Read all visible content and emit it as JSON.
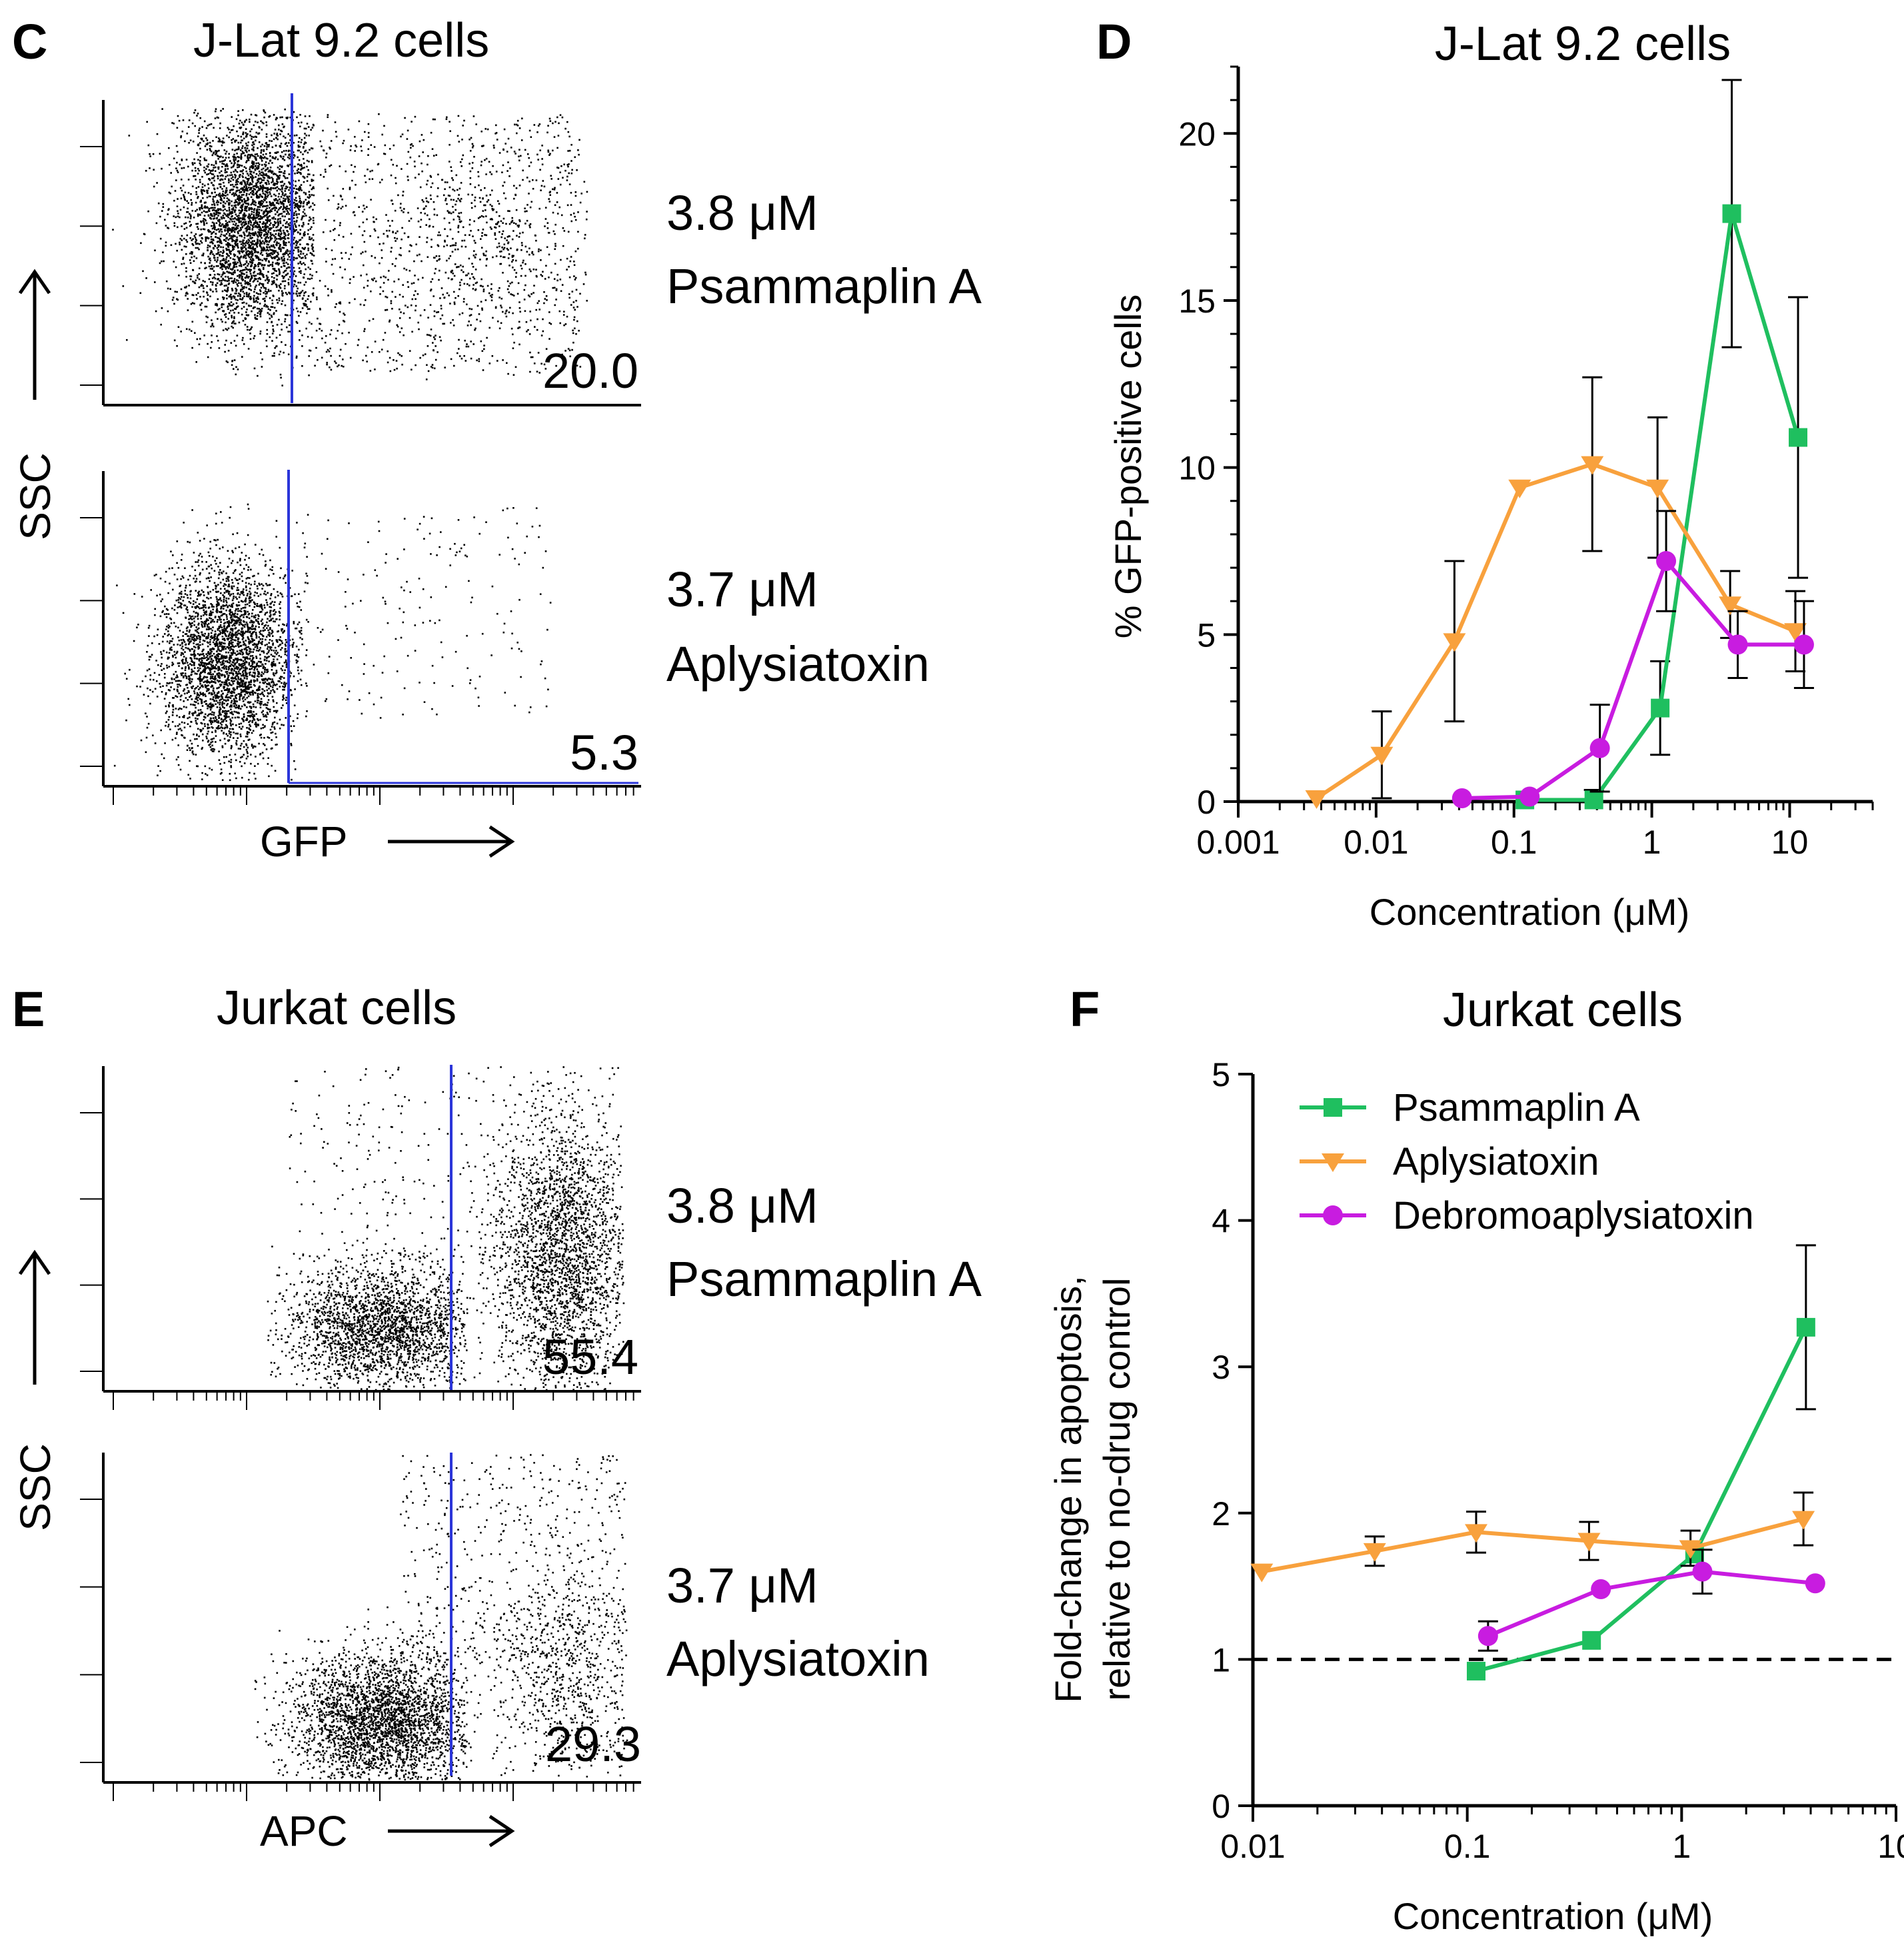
{
  "colors": {
    "psammaplin": "#1fbf5f",
    "aplysiatoxin": "#f8a13d",
    "debromo": "#c81ce0",
    "gate": "#2b35d9",
    "axis": "#000000",
    "dots": "#000000"
  },
  "panels": {
    "C": {
      "letter": "C",
      "title": "J-Lat 9.2 cells",
      "y_axis": "SSC",
      "x_axis": "GFP",
      "plots": [
        {
          "conc": "3.8 μM",
          "compound": "Psammaplin A",
          "gate_percent": "20.0"
        },
        {
          "conc": "3.7 μM",
          "compound": "Aplysiatoxin",
          "gate_percent": "5.3"
        }
      ]
    },
    "E": {
      "letter": "E",
      "title": "Jurkat cells",
      "y_axis": "SSC",
      "x_axis": "APC",
      "plots": [
        {
          "conc": "3.8 μM",
          "compound": "Psammaplin A",
          "gate_percent": "55.4"
        },
        {
          "conc": "3.7 μM",
          "compound": "Aplysiatoxin",
          "gate_percent": "29.3"
        }
      ]
    }
  },
  "chart_data": [
    {
      "panel": "D",
      "letter": "D",
      "type": "line",
      "title": "J-Lat 9.2 cells",
      "xlabel": "Concentration (μM)",
      "ylabel": "%  GFP-positive cells",
      "x_scale": "log",
      "xlim": [
        0.001,
        40
      ],
      "ylim": [
        0,
        22
      ],
      "x_ticks": [
        0.001,
        0.01,
        0.1,
        1,
        10
      ],
      "x_tick_labels": [
        "0.001",
        "0.01",
        "0.1",
        "1",
        "10"
      ],
      "y_ticks": [
        0,
        5,
        10,
        15,
        20
      ],
      "y_tick_labels": [
        "0",
        "5",
        "10",
        "15",
        "20"
      ],
      "series": [
        {
          "name": "Psammaplin A",
          "color": "#1fbf5f",
          "marker": "square",
          "x": [
            0.12,
            0.38,
            1.15,
            3.8,
            11.5
          ],
          "y": [
            0.05,
            0.05,
            2.8,
            17.6,
            10.9
          ],
          "err": [
            0,
            0.3,
            1.4,
            4.0,
            4.2
          ]
        },
        {
          "name": "Aplysiatoxin",
          "color": "#f8a13d",
          "marker": "triangle-down",
          "x": [
            0.0037,
            0.011,
            0.037,
            0.11,
            0.37,
            1.1,
            3.7,
            11.0
          ],
          "y": [
            0.1,
            1.4,
            4.8,
            9.4,
            10.1,
            9.4,
            5.9,
            5.1
          ],
          "err": [
            0,
            1.3,
            2.4,
            0,
            2.6,
            2.1,
            1.0,
            1.2
          ]
        },
        {
          "name": "Debromoaplysiatoxin",
          "color": "#c81ce0",
          "marker": "circle",
          "x": [
            0.042,
            0.13,
            0.42,
            1.27,
            4.2,
            12.7
          ],
          "y": [
            0.1,
            0.15,
            1.6,
            7.2,
            4.7,
            4.7
          ],
          "err": [
            0,
            0,
            1.3,
            1.5,
            1.0,
            1.3
          ]
        }
      ]
    },
    {
      "panel": "F",
      "letter": "F",
      "type": "line",
      "title": "Jurkat cells",
      "xlabel": "Concentration (μM)",
      "ylabel_lines": [
        "Fold-change in apoptosis,",
        "relative to no-drug control"
      ],
      "x_scale": "log",
      "xlim": [
        0.01,
        10
      ],
      "ylim": [
        0,
        5
      ],
      "x_ticks": [
        0.01,
        0.1,
        1,
        10
      ],
      "x_tick_labels": [
        "0.01",
        "0.1",
        "1",
        "10"
      ],
      "y_ticks": [
        0,
        1,
        2,
        3,
        4,
        5
      ],
      "y_tick_labels": [
        "0",
        "1",
        "2",
        "3",
        "4",
        "5"
      ],
      "reference_line": 1,
      "legend": [
        "Psammaplin A",
        "Aplysiatoxin",
        "Debromoaplysiatoxin"
      ],
      "legend_position": "top-left",
      "series": [
        {
          "name": "Psammaplin A",
          "color": "#1fbf5f",
          "marker": "square",
          "x": [
            0.11,
            0.38,
            1.15,
            3.8
          ],
          "y": [
            0.92,
            1.13,
            1.72,
            3.27
          ],
          "err": [
            0,
            0,
            0,
            0.56
          ]
        },
        {
          "name": "Aplysiatoxin",
          "color": "#f8a13d",
          "marker": "triangle-down",
          "x": [
            0.011,
            0.037,
            0.11,
            0.37,
            1.1,
            3.7
          ],
          "y": [
            1.6,
            1.74,
            1.87,
            1.81,
            1.76,
            1.96
          ],
          "err": [
            0,
            0.1,
            0.14,
            0.13,
            0.12,
            0.18
          ]
        },
        {
          "name": "Debromoaplysiatoxin",
          "color": "#c81ce0",
          "marker": "circle",
          "x": [
            0.125,
            0.42,
            1.25,
            4.2
          ],
          "y": [
            1.16,
            1.48,
            1.6,
            1.52
          ],
          "err": [
            0.1,
            0,
            0.15,
            0
          ]
        }
      ]
    }
  ]
}
